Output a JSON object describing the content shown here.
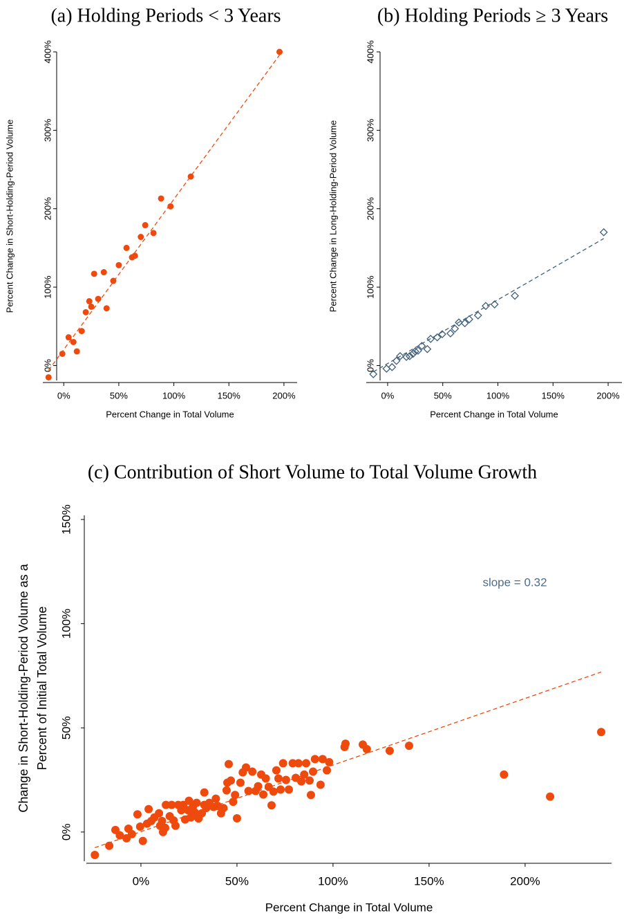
{
  "chart_data": [
    {
      "type": "scatter",
      "title": "(a) Holding Periods < 3 Years",
      "xlabel": "Percent Change in Total Volume",
      "ylabel": [
        "Percent Change in Short-Holding-Period Volume"
      ],
      "xlim": [
        -19,
        212
      ],
      "ylim": [
        -19,
        400
      ],
      "xticks": [
        {
          "value": 0,
          "label": "0%"
        },
        {
          "value": 50,
          "label": "50%"
        },
        {
          "value": 100,
          "label": "100%"
        },
        {
          "value": 150,
          "label": "150%"
        },
        {
          "value": 200,
          "label": "200%"
        }
      ],
      "yticks": [
        {
          "value": 0,
          "label": "0%"
        },
        {
          "value": 100,
          "label": "100%"
        },
        {
          "value": 200,
          "label": "200%"
        },
        {
          "value": 300,
          "label": "300%"
        },
        {
          "value": 400,
          "label": "400%"
        }
      ],
      "series": [
        {
          "color": "#ee4a0e",
          "marker": "circle",
          "x": [
            -13.8,
            -1.3,
            4.4,
            8.8,
            11.9,
            16.3,
            20,
            23.2,
            25,
            27.6,
            31.3,
            36.4,
            38.9,
            45,
            50,
            57,
            62,
            64.6,
            70,
            74,
            81.5,
            88.4,
            97,
            115.4,
            196
          ],
          "values": [
            -15,
            15,
            36,
            30,
            18,
            44,
            68,
            82,
            75,
            117,
            85,
            119,
            73,
            108,
            128,
            150,
            138,
            140,
            164,
            179,
            169,
            213,
            203,
            241,
            400
          ]
        }
      ],
      "trend": {
        "color": "#ee4a0e",
        "x": [
          -13.8,
          196
        ],
        "values": [
          -6,
          396
        ]
      }
    },
    {
      "type": "scatter",
      "title": "(b) Holding Periods ≥ 3 Years",
      "xlabel": "Percent Change in Total Volume",
      "ylabel": [
        "Percent Change in Long-Holding-Period Volume"
      ],
      "xlim": [
        -19.4,
        212.5
      ],
      "ylim": [
        -19,
        400
      ],
      "xticks": [
        {
          "value": 0,
          "label": "0%"
        },
        {
          "value": 50,
          "label": "50%"
        },
        {
          "value": 100,
          "label": "100%"
        },
        {
          "value": 150,
          "label": "150%"
        },
        {
          "value": 200,
          "label": "200%"
        }
      ],
      "yticks": [
        {
          "value": 0,
          "label": "0%"
        },
        {
          "value": 100,
          "label": "100%"
        },
        {
          "value": 200,
          "label": "200%"
        },
        {
          "value": 300,
          "label": "300%"
        },
        {
          "value": 400,
          "label": "400%"
        }
      ],
      "series": [
        {
          "color": "#3e5f7a",
          "marker": "diamond",
          "x": [
            -13,
            -1,
            4,
            8,
            11.3,
            17,
            20,
            23,
            25,
            27.6,
            31,
            36,
            39,
            45,
            49.5,
            57,
            61,
            64.6,
            70,
            74,
            82,
            89,
            97,
            115.4,
            196
          ],
          "values": [
            -11,
            -4,
            -2,
            6,
            12,
            11,
            12,
            15,
            18,
            19,
            25,
            21,
            34,
            36,
            40,
            41,
            47,
            55,
            54,
            59,
            64,
            76,
            78,
            89,
            170
          ]
        }
      ],
      "trend": {
        "color": "#3e5f7a",
        "x": [
          -13,
          196
        ],
        "values": [
          -8,
          162
        ]
      }
    },
    {
      "type": "scatter",
      "title": "(c) Contribution of Short Volume to Total Volume Growth",
      "xlabel": "Percent Change in Total Volume",
      "ylabel": [
        "Change in Short-Holding-Period Volume as a",
        "Percent of Initial Total Volume"
      ],
      "annotation": "slope = 0.32",
      "annotation_color": "#4f6d8a",
      "xlim": [
        -28.4,
        245
      ],
      "ylim": [
        -14,
        152
      ],
      "xticks": [
        {
          "value": 0,
          "label": "0%"
        },
        {
          "value": 50,
          "label": "50%"
        },
        {
          "value": 100,
          "label": "100%"
        },
        {
          "value": 150,
          "label": "150%"
        },
        {
          "value": 200,
          "label": "200%"
        }
      ],
      "yticks": [
        {
          "value": 0,
          "label": "0%"
        },
        {
          "value": 50,
          "label": "50%"
        },
        {
          "value": 100,
          "label": "100%"
        },
        {
          "value": 150,
          "label": "150%"
        }
      ],
      "series": [
        {
          "color": "#ee4a0e",
          "marker": "circle",
          "x": [
            -24,
            -16.5,
            -13.3,
            -11,
            -7.5,
            -6.5,
            -4.7,
            -1.8,
            -0.4,
            1,
            3.2,
            4,
            5.4,
            7,
            9.4,
            10,
            11,
            11.5,
            12.6,
            13,
            15,
            16,
            17,
            18,
            19.4,
            21,
            22,
            23,
            24.5,
            25,
            26,
            27,
            28,
            29,
            30,
            31.7,
            33,
            33,
            34,
            35.6,
            37.8,
            39,
            40,
            41.7,
            43,
            44.6,
            45,
            45.7,
            46.8,
            48,
            49,
            50,
            51.8,
            53,
            54.7,
            56,
            58,
            59.7,
            61,
            62.6,
            63.7,
            65,
            66.5,
            68,
            69,
            70.5,
            71.6,
            72.7,
            74,
            75.5,
            77,
            79,
            80.6,
            82,
            83.5,
            85,
            86,
            87.8,
            88.5,
            89.6,
            90.6,
            93.5,
            94.6,
            96.8,
            98,
            106,
            106.5,
            115.5,
            117.6,
            129.5,
            139.6,
            189,
            213,
            239.6
          ],
          "values": [
            -11,
            -6.6,
            1,
            -1.6,
            -3,
            1.6,
            -1,
            8.5,
            2.6,
            -4.3,
            4,
            11,
            5.3,
            7,
            9,
            3,
            5.3,
            0,
            2,
            13,
            7.6,
            13,
            5.6,
            3,
            13,
            10.5,
            13,
            6,
            10.5,
            15,
            7,
            12,
            9.5,
            14,
            6.5,
            9,
            19,
            13,
            11.5,
            14,
            12,
            16,
            12.5,
            9,
            11.5,
            20,
            23.7,
            32.6,
            24.7,
            14.5,
            17.8,
            6.6,
            23.7,
            28.6,
            31,
            19.7,
            29,
            19.7,
            22,
            27.6,
            18,
            25.7,
            21.7,
            12.8,
            19.4,
            29.6,
            25.7,
            20.4,
            33,
            25,
            20.4,
            33,
            26,
            33,
            24.3,
            27.6,
            33,
            24.7,
            17.8,
            29,
            35,
            22.7,
            35,
            29.6,
            33.5,
            40.8,
            42.4,
            42,
            39.8,
            39,
            41.4,
            27.6,
            17,
            48
          ]
        }
      ],
      "trend": {
        "color": "#ee4a0e",
        "x": [
          -24,
          239.6
        ],
        "values": [
          -7.5,
          76.8
        ]
      }
    }
  ]
}
